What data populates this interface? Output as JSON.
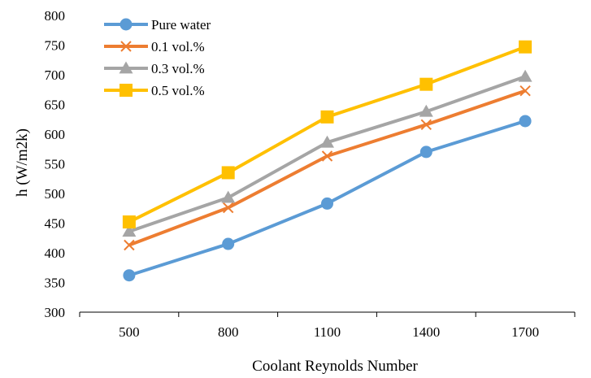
{
  "chart_data": {
    "type": "line",
    "x": [
      "500",
      "800",
      "1100",
      "1400",
      "1700"
    ],
    "xlabel": "Coolant Reynolds Number",
    "ylabel": "h (W/m2k)",
    "ylim": [
      300,
      800
    ],
    "yticks": [
      300,
      350,
      400,
      450,
      500,
      550,
      600,
      650,
      700,
      750,
      800
    ],
    "grid": false,
    "legend_position": "top-left",
    "series": [
      {
        "name": "Pure water",
        "values": [
          362,
          415,
          483,
          570,
          622
        ],
        "color": "#5B9BD5",
        "marker": "circle"
      },
      {
        "name": "0.1 vol.%",
        "values": [
          413,
          476,
          563,
          616,
          673
        ],
        "color": "#ED7D31",
        "marker": "x"
      },
      {
        "name": "0.3 vol.%",
        "values": [
          436,
          493,
          586,
          638,
          697
        ],
        "color": "#A5A5A5",
        "marker": "triangle"
      },
      {
        "name": "0.5 vol.%",
        "values": [
          452,
          535,
          629,
          684,
          747
        ],
        "color": "#FFC000",
        "marker": "square"
      }
    ]
  }
}
